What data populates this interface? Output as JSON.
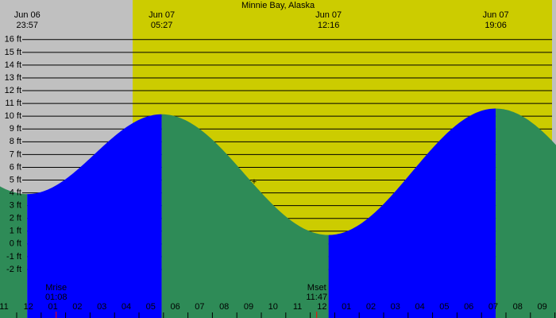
{
  "chart_data": {
    "type": "tide",
    "title": "Minnie Bay, Alaska",
    "extremes": [
      {
        "date": "Jun 06",
        "time": "23:57",
        "value": 3.9
      },
      {
        "date": "Jun 07",
        "time": "05:27",
        "value": 10.15
      },
      {
        "date": "Jun 07",
        "time": "12:16",
        "value": 0.7
      },
      {
        "date": "Jun 07",
        "time": "19:06",
        "value": 10.6
      }
    ],
    "rising_color": "#0000ff",
    "falling_color": "#2e8b57",
    "ylim": [
      -5.8,
      19.1
    ],
    "yticks": [
      {
        "value": 16,
        "label": "16 ft"
      },
      {
        "value": 15,
        "label": "15 ft"
      },
      {
        "value": 14,
        "label": "14 ft"
      },
      {
        "value": 13,
        "label": "13 ft"
      },
      {
        "value": 12,
        "label": "12 ft"
      },
      {
        "value": 11,
        "label": "11 ft"
      },
      {
        "value": 10,
        "label": "10 ft"
      },
      {
        "value": 9,
        "label": "9 ft"
      },
      {
        "value": 8,
        "label": "8 ft"
      },
      {
        "value": 7,
        "label": "7 ft"
      },
      {
        "value": 6,
        "label": "6 ft"
      },
      {
        "value": 5,
        "label": "5 ft"
      },
      {
        "value": 4,
        "label": "4 ft"
      },
      {
        "value": 3,
        "label": "3 ft"
      },
      {
        "value": 2,
        "label": "2 ft"
      },
      {
        "value": 1,
        "label": "1 ft"
      },
      {
        "value": 0,
        "label": "0 ft"
      },
      {
        "value": -1,
        "label": "-1 ft"
      },
      {
        "value": -2,
        "label": "-2 ft"
      }
    ],
    "hour_labels": [
      "11",
      "12",
      "01",
      "02",
      "03",
      "04",
      "05",
      "06",
      "07",
      "08",
      "09",
      "10",
      "11",
      "12",
      "01",
      "02",
      "03",
      "04",
      "05",
      "06",
      "07",
      "08",
      "09"
    ],
    "moon_events": [
      {
        "label": "Mrise",
        "time": "01:08"
      },
      {
        "label": "Mset",
        "time": "11:47"
      }
    ],
    "grid": true
  }
}
